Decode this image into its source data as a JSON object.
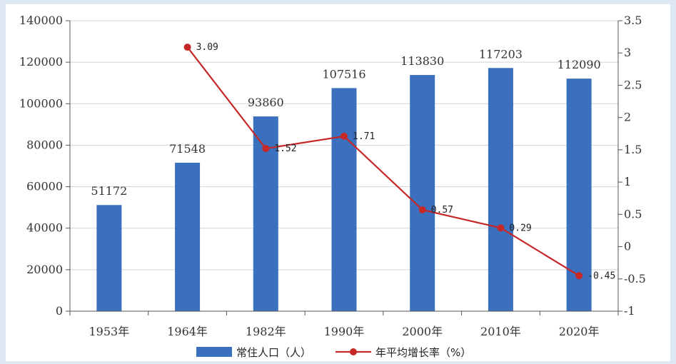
{
  "chart_data": {
    "type": "bar",
    "categories": [
      "1953年",
      "1964年",
      "1982年",
      "1990年",
      "2000年",
      "2010年",
      "2020年"
    ],
    "series": [
      {
        "name": "常住人口（人）",
        "type": "bar",
        "axis": "left",
        "values": [
          51172,
          71548,
          93860,
          107516,
          113830,
          117203,
          112090
        ],
        "labels": [
          "51172",
          "71548",
          "93860",
          "107516",
          "113830",
          "117203",
          "112090"
        ],
        "color": "#3a70bd"
      },
      {
        "name": "年平均增长率（%）",
        "type": "line",
        "axis": "right",
        "values": [
          null,
          3.09,
          1.52,
          1.71,
          0.57,
          0.29,
          -0.45
        ],
        "labels": [
          null,
          "3.09",
          "1.52",
          "1.71",
          "0.57",
          "0.29",
          "-0.45"
        ],
        "color": "#c62828"
      }
    ],
    "y_left": {
      "min": 0,
      "max": 140000,
      "ticks": [
        0,
        20000,
        40000,
        60000,
        80000,
        100000,
        120000,
        140000
      ],
      "tick_labels": [
        "0",
        "20000",
        "40000",
        "60000",
        "80000",
        "100000",
        "120000",
        "140000"
      ]
    },
    "y_right": {
      "min": -1,
      "max": 3.5,
      "ticks": [
        -1,
        -0.5,
        0,
        0.5,
        1,
        1.5,
        2,
        2.5,
        3,
        3.5
      ],
      "tick_labels": [
        "-1",
        "-0.5",
        "0",
        "0.5",
        "1",
        "1.5",
        "2",
        "2.5",
        "3",
        "3.5"
      ]
    },
    "grid": true,
    "legend": "bottom-center"
  },
  "colors": {
    "background": "#dde8f3",
    "plot_background": "#ffffff",
    "grid": "#d4d4d4",
    "axis": "#555555"
  }
}
